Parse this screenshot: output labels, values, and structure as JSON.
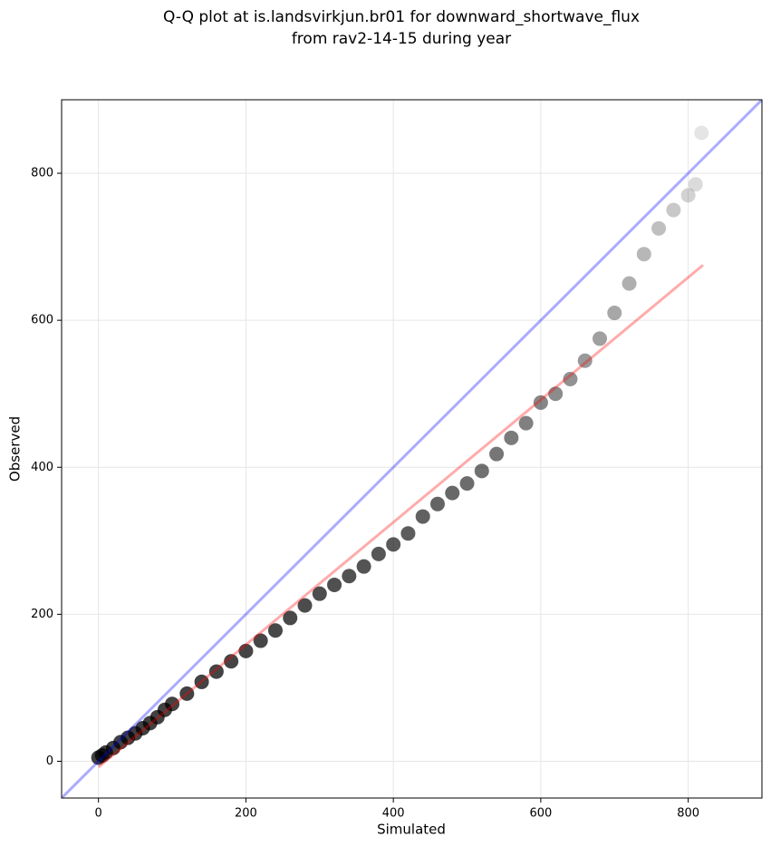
{
  "chart_data": {
    "type": "scatter",
    "title": "Q-Q plot at is.landsvirkjun.br01 for downward_shortwave_flux",
    "subtitle": "from rav2-14-15 during year",
    "x_label": "Simulated",
    "y_label": "Observed",
    "xlim": [
      -50,
      900
    ],
    "ylim": [
      -50,
      900
    ],
    "xticks": [
      0,
      200,
      400,
      600,
      800
    ],
    "yticks": [
      0,
      200,
      400,
      600,
      800
    ],
    "grid": true,
    "series": [
      {
        "color": "#000000",
        "x": [
          0,
          5,
          10,
          20,
          30,
          40,
          50,
          60,
          70,
          80,
          90,
          100,
          120,
          140,
          160,
          180,
          200,
          220,
          240,
          260,
          280,
          300,
          320,
          340,
          360,
          380,
          400,
          420,
          440,
          460,
          480,
          500,
          520,
          540,
          560,
          580,
          600,
          620,
          640,
          660,
          680,
          700,
          720,
          740,
          760,
          780,
          800,
          810,
          818
        ],
        "values": [
          5,
          8,
          12,
          18,
          26,
          32,
          38,
          45,
          52,
          60,
          70,
          78,
          92,
          108,
          122,
          136,
          150,
          164,
          178,
          195,
          212,
          228,
          240,
          252,
          265,
          282,
          295,
          310,
          333,
          350,
          365,
          378,
          395,
          418,
          440,
          460,
          488,
          500,
          520,
          545,
          575,
          610,
          650,
          690,
          725,
          750,
          770,
          785,
          855
        ]
      }
    ],
    "lines": [
      {
        "color": "#0000ff",
        "x": [
          -50,
          900
        ],
        "values": [
          -50,
          900
        ]
      },
      {
        "color": "#ff0000",
        "x": [
          0,
          820
        ],
        "values": [
          -8,
          675
        ]
      }
    ]
  }
}
